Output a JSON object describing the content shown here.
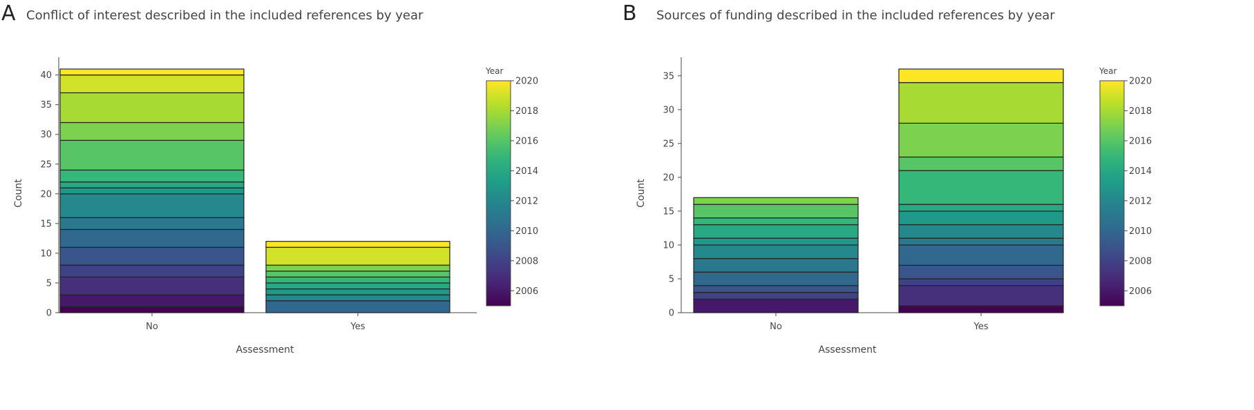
{
  "colors": {
    "viridis": [
      "#440154",
      "#482878",
      "#3e4989",
      "#31688e",
      "#26828e",
      "#1f9e89",
      "#35b779",
      "#6ece58",
      "#b5de2b",
      "#fde725"
    ],
    "bar_outline": "#222222",
    "axis": "#444444"
  },
  "chart_data": [
    {
      "panel_label": "A",
      "type": "bar",
      "stacked": true,
      "title": "Conflict of interest described in the included references by year",
      "xlabel": "Assessment",
      "ylabel": "Count",
      "categories": [
        "No",
        "Yes"
      ],
      "ylim": [
        0,
        42
      ],
      "yticks": [
        0,
        5,
        10,
        15,
        20,
        25,
        30,
        35,
        40
      ],
      "colorbar": {
        "title": "Year",
        "range": [
          2005,
          2020
        ],
        "ticks": [
          2006,
          2008,
          2010,
          2012,
          2014,
          2016,
          2018,
          2020
        ]
      },
      "stacks": [
        {
          "category": "No",
          "total": 41,
          "segments": [
            {
              "year": 2005,
              "value": 1
            },
            {
              "year": 2006,
              "value": 2
            },
            {
              "year": 2007,
              "value": 3
            },
            {
              "year": 2008,
              "value": 2
            },
            {
              "year": 2009,
              "value": 3
            },
            {
              "year": 2010,
              "value": 3
            },
            {
              "year": 2011,
              "value": 2
            },
            {
              "year": 2012,
              "value": 4
            },
            {
              "year": 2013,
              "value": 1
            },
            {
              "year": 2014,
              "value": 1
            },
            {
              "year": 2015,
              "value": 2
            },
            {
              "year": 2016,
              "value": 5
            },
            {
              "year": 2017,
              "value": 3
            },
            {
              "year": 2018,
              "value": 5
            },
            {
              "year": 2019,
              "value": 3
            },
            {
              "year": 2020,
              "value": 1
            }
          ]
        },
        {
          "category": "Yes",
          "total": 12,
          "segments": [
            {
              "year": 2010,
              "value": 2
            },
            {
              "year": 2012,
              "value": 1
            },
            {
              "year": 2013,
              "value": 1
            },
            {
              "year": 2014,
              "value": 1
            },
            {
              "year": 2015,
              "value": 1
            },
            {
              "year": 2016,
              "value": 1
            },
            {
              "year": 2017,
              "value": 1
            },
            {
              "year": 2019,
              "value": 3
            },
            {
              "year": 2020,
              "value": 1
            }
          ]
        }
      ]
    },
    {
      "panel_label": "B",
      "type": "bar",
      "stacked": true,
      "title": "Sources of funding described in the included references by year",
      "xlabel": "Assessment",
      "ylabel": "Count",
      "categories": [
        "No",
        "Yes"
      ],
      "ylim": [
        0,
        37
      ],
      "yticks": [
        0,
        5,
        10,
        15,
        20,
        25,
        30,
        35
      ],
      "colorbar": {
        "title": "Year",
        "range": [
          2005,
          2020
        ],
        "ticks": [
          2006,
          2008,
          2010,
          2012,
          2014,
          2016,
          2018,
          2020
        ]
      },
      "stacks": [
        {
          "category": "No",
          "total": 17,
          "segments": [
            {
              "year": 2006,
              "value": 2
            },
            {
              "year": 2008,
              "value": 1
            },
            {
              "year": 2009,
              "value": 1
            },
            {
              "year": 2010,
              "value": 2
            },
            {
              "year": 2011,
              "value": 2
            },
            {
              "year": 2012,
              "value": 2
            },
            {
              "year": 2013,
              "value": 1
            },
            {
              "year": 2014,
              "value": 2
            },
            {
              "year": 2015,
              "value": 1
            },
            {
              "year": 2016,
              "value": 2
            },
            {
              "year": 2017,
              "value": 1
            }
          ]
        },
        {
          "category": "Yes",
          "total": 36,
          "segments": [
            {
              "year": 2005,
              "value": 1
            },
            {
              "year": 2007,
              "value": 3
            },
            {
              "year": 2008,
              "value": 1
            },
            {
              "year": 2009,
              "value": 2
            },
            {
              "year": 2010,
              "value": 3
            },
            {
              "year": 2011,
              "value": 1
            },
            {
              "year": 2012,
              "value": 2
            },
            {
              "year": 2013,
              "value": 2
            },
            {
              "year": 2014,
              "value": 1
            },
            {
              "year": 2015,
              "value": 5
            },
            {
              "year": 2016,
              "value": 2
            },
            {
              "year": 2017,
              "value": 5
            },
            {
              "year": 2018,
              "value": 6
            },
            {
              "year": 2020,
              "value": 2
            }
          ]
        }
      ]
    }
  ]
}
